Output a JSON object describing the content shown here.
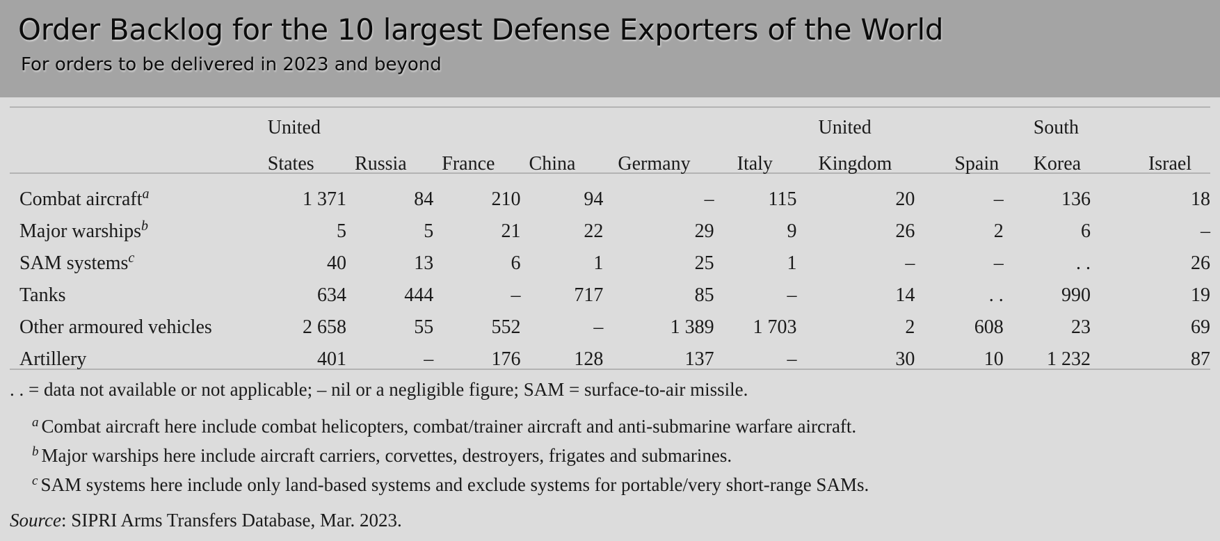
{
  "header": {
    "title": "Order Backlog for the 10 largest Defense Exporters of the World",
    "subtitle": "For orders to be delivered in 2023 and beyond"
  },
  "chart_data": {
    "type": "table",
    "columns": [
      {
        "line1": "United",
        "line2": "States"
      },
      {
        "line1": "",
        "line2": "Russia"
      },
      {
        "line1": "",
        "line2": "France"
      },
      {
        "line1": "",
        "line2": "China"
      },
      {
        "line1": "",
        "line2": "Germany"
      },
      {
        "line1": "",
        "line2": "Italy"
      },
      {
        "line1": "United",
        "line2": "Kingdom"
      },
      {
        "line1": "",
        "line2": "Spain"
      },
      {
        "line1": "South",
        "line2": "Korea"
      },
      {
        "line1": "",
        "line2": "Israel"
      }
    ],
    "rows": [
      {
        "label": "Combat aircraft",
        "note": "a",
        "values": [
          "1 371",
          "84",
          "210",
          "94",
          "–",
          "115",
          "20",
          "–",
          "136",
          "18"
        ]
      },
      {
        "label": "Major warships",
        "note": "b",
        "values": [
          "5",
          "5",
          "21",
          "22",
          "29",
          "9",
          "26",
          "2",
          "6",
          "–"
        ]
      },
      {
        "label": "SAM systems",
        "note": "c",
        "values": [
          "40",
          "13",
          "6",
          "1",
          "25",
          "1",
          "–",
          "–",
          ". .",
          "26"
        ]
      },
      {
        "label": "Tanks",
        "note": "",
        "values": [
          "634",
          "444",
          "–",
          "717",
          "85",
          "–",
          "14",
          ". .",
          "990",
          "19"
        ]
      },
      {
        "label": "Other armoured vehicles",
        "note": "",
        "values": [
          "2 658",
          "55",
          "552",
          "–",
          "1 389",
          "1 703",
          "2",
          "608",
          "23",
          "69"
        ]
      },
      {
        "label": "Artillery",
        "note": "",
        "values": [
          "401",
          "–",
          "176",
          "128",
          "137",
          "–",
          "30",
          "10",
          "1 232",
          "87"
        ]
      }
    ]
  },
  "notes": {
    "legend": ". . = data not available or not applicable; – nil or a negligible figure; SAM = surface-to-air missile.",
    "footnotes": [
      {
        "mark": "a",
        "text": "Combat aircraft here include combat helicopters, combat/trainer aircraft and anti-submarine warfare aircraft."
      },
      {
        "mark": "b",
        "text": "Major warships here include aircraft carriers, corvettes, destroyers, frigates and submarines."
      },
      {
        "mark": "c",
        "text": "SAM systems here include only land-based systems and exclude systems for portable/very short-range SAMs."
      }
    ],
    "source_label": "Source",
    "source_text": ": SIPRI Arms Transfers Database, Mar. 2023."
  }
}
